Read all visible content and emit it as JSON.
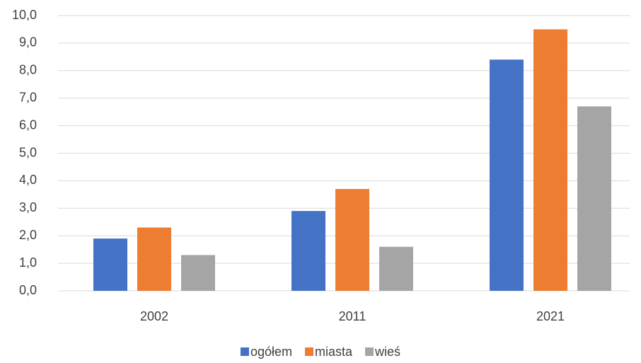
{
  "chart_data": {
    "type": "bar",
    "categories": [
      "2002",
      "2011",
      "2021"
    ],
    "series": [
      {
        "name": "ogółem",
        "color": "#4472c4",
        "values": [
          1.9,
          2.9,
          8.4
        ]
      },
      {
        "name": "miasta",
        "color": "#ed7d31",
        "values": [
          2.3,
          3.7,
          9.5
        ]
      },
      {
        "name": "wieś",
        "color": "#a5a5a5",
        "values": [
          1.3,
          1.6,
          6.7
        ]
      }
    ],
    "ylim": [
      0,
      10
    ],
    "yticks": [
      {
        "value": 0,
        "label": "0,0"
      },
      {
        "value": 1,
        "label": "1,0"
      },
      {
        "value": 2,
        "label": "2,0"
      },
      {
        "value": 3,
        "label": "3,0"
      },
      {
        "value": 4,
        "label": "4,0"
      },
      {
        "value": 5,
        "label": "5,0"
      },
      {
        "value": 6,
        "label": "6,0"
      },
      {
        "value": 7,
        "label": "7,0"
      },
      {
        "value": 8,
        "label": "8,0"
      },
      {
        "value": 9,
        "label": "9,0"
      },
      {
        "value": 10,
        "label": "10,0"
      }
    ],
    "grid": true,
    "legend": "bottom"
  }
}
